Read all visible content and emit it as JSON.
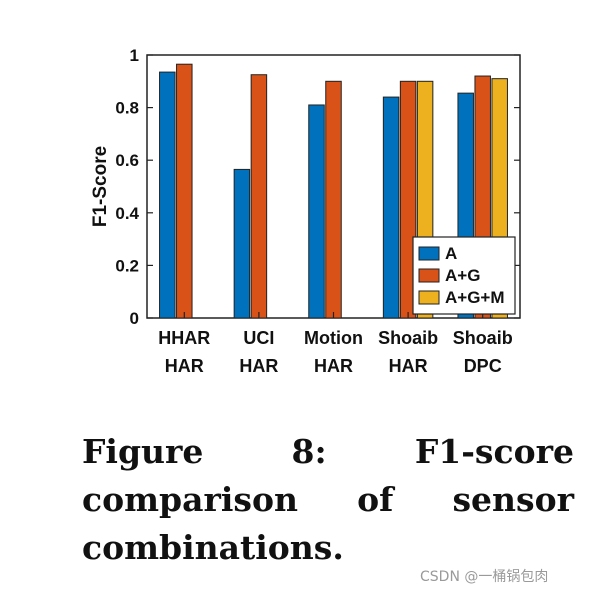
{
  "chart_data": {
    "type": "bar",
    "categories": [
      [
        "HHAR",
        "HAR"
      ],
      [
        "UCI",
        "HAR"
      ],
      [
        "Motion",
        "HAR"
      ],
      [
        "Shoaib",
        "HAR"
      ],
      [
        "Shoaib",
        "DPC"
      ]
    ],
    "series": [
      {
        "name": "A",
        "color": "#0072BD",
        "values": [
          0.935,
          0.565,
          0.81,
          0.84,
          0.855
        ]
      },
      {
        "name": "A+G",
        "color": "#D95319",
        "values": [
          0.965,
          0.925,
          0.9,
          0.9,
          0.92
        ]
      },
      {
        "name": "A+G+M",
        "color": "#EDB120",
        "values": [
          null,
          null,
          null,
          0.9,
          0.91
        ]
      }
    ],
    "ylabel": "F1-Score",
    "xlabel": "",
    "ylim": [
      0,
      1
    ],
    "yticks": [
      0,
      0.2,
      0.4,
      0.6,
      0.8,
      1
    ],
    "ytick_labels": [
      "0",
      "0.2",
      "0.4",
      "0.6",
      "0.8",
      "1"
    ],
    "legend_position": "bottom-right",
    "grid": false
  },
  "caption": "Figure 8: F1-score comparison of sensor combinations.",
  "watermark": "CSDN @一桶锅包肉"
}
